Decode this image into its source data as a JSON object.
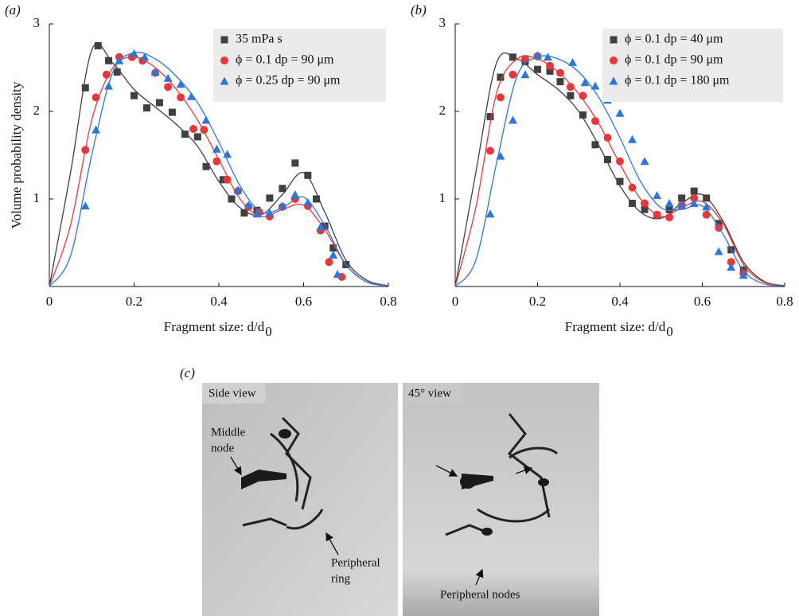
{
  "chart_data": [
    {
      "type": "scatter",
      "panel_label": "(a)",
      "ylabel": "Volume probability density",
      "xlabel": "Fragment size: d/d",
      "xlabel_sub": "0",
      "xlim": [
        0,
        0.8
      ],
      "xticks": [
        0,
        0.2,
        0.4,
        0.6,
        0.8
      ],
      "ylim": [
        0,
        3
      ],
      "yticks": [
        1,
        2,
        3
      ],
      "fit_x": [
        0,
        0.05,
        0.1,
        0.15,
        0.2,
        0.25,
        0.3,
        0.35,
        0.4,
        0.45,
        0.5,
        0.55,
        0.6,
        0.65,
        0.7,
        0.75,
        0.8
      ],
      "series": [
        {
          "name": "35 mPa s",
          "color": "#404040",
          "marker": "square",
          "x": [
            0.085,
            0.115,
            0.14,
            0.16,
            0.2,
            0.23,
            0.26,
            0.29,
            0.32,
            0.35,
            0.37,
            0.41,
            0.43,
            0.46,
            0.49,
            0.52,
            0.55,
            0.58,
            0.61,
            0.63,
            0.65,
            0.67,
            0.7
          ],
          "values": [
            2.27,
            2.75,
            2.58,
            2.45,
            2.18,
            2.04,
            2.1,
            1.99,
            1.74,
            1.71,
            1.37,
            1.22,
            1.0,
            0.84,
            0.87,
            1.01,
            1.12,
            1.41,
            1.27,
            1.0,
            0.69,
            0.44,
            0.25
          ],
          "fit": [
            0,
            1.3,
            2.7,
            2.55,
            2.25,
            2.05,
            1.85,
            1.6,
            1.2,
            0.9,
            0.82,
            1.05,
            1.3,
            0.85,
            0.3,
            0.07,
            0.01
          ]
        },
        {
          "name": "ϕ = 0.1 dp = 90 μm",
          "color": "#e8373a",
          "marker": "circle",
          "x": [
            0.085,
            0.11,
            0.135,
            0.165,
            0.195,
            0.22,
            0.25,
            0.28,
            0.31,
            0.34,
            0.365,
            0.395,
            0.42,
            0.445,
            0.47,
            0.495,
            0.52,
            0.55,
            0.58,
            0.61,
            0.64,
            0.66,
            0.69
          ],
          "values": [
            1.56,
            2.16,
            2.42,
            2.62,
            2.62,
            2.58,
            2.44,
            2.28,
            2.16,
            1.8,
            1.79,
            1.43,
            1.22,
            1.09,
            0.91,
            0.85,
            0.8,
            0.91,
            1.0,
            0.92,
            0.64,
            0.28,
            0.11
          ],
          "fit": [
            0,
            0.7,
            1.9,
            2.5,
            2.62,
            2.5,
            2.25,
            1.9,
            1.45,
            1.0,
            0.8,
            0.88,
            0.93,
            0.65,
            0.25,
            0.05,
            0.01
          ]
        },
        {
          "name": "ϕ = 0.25 dp = 90 μm",
          "color": "#2f77d6",
          "marker": "triangle",
          "x": [
            0.085,
            0.11,
            0.14,
            0.165,
            0.2,
            0.225,
            0.25,
            0.28,
            0.31,
            0.335,
            0.37,
            0.395,
            0.42,
            0.445,
            0.47,
            0.49,
            0.52,
            0.55,
            0.58,
            0.61,
            0.64,
            0.67,
            0.68
          ],
          "values": [
            0.92,
            1.79,
            2.29,
            2.58,
            2.66,
            2.62,
            2.45,
            2.38,
            2.31,
            2.17,
            1.9,
            1.57,
            1.51,
            1.1,
            0.93,
            0.83,
            0.84,
            0.92,
            1.05,
            0.96,
            0.68,
            0.36,
            0.14
          ],
          "fit": [
            0,
            0.35,
            1.5,
            2.45,
            2.67,
            2.6,
            2.4,
            2.1,
            1.65,
            1.15,
            0.85,
            0.9,
            1.02,
            0.7,
            0.25,
            0.05,
            0.01
          ]
        }
      ]
    },
    {
      "type": "scatter",
      "panel_label": "(b)",
      "xlabel": "Fragment size: d/d",
      "xlabel_sub": "0",
      "xlim": [
        0,
        0.8
      ],
      "xticks": [
        0,
        0.2,
        0.4,
        0.6,
        0.8
      ],
      "ylim": [
        0,
        3
      ],
      "yticks": [
        1,
        2,
        3
      ],
      "fit_x": [
        0,
        0.05,
        0.1,
        0.15,
        0.2,
        0.25,
        0.3,
        0.35,
        0.4,
        0.45,
        0.5,
        0.55,
        0.6,
        0.65,
        0.7,
        0.75,
        0.8
      ],
      "series": [
        {
          "name": "ϕ = 0.1 dp = 40 μm",
          "color": "#404040",
          "marker": "square",
          "x": [
            0.085,
            0.11,
            0.14,
            0.17,
            0.2,
            0.23,
            0.255,
            0.28,
            0.31,
            0.34,
            0.37,
            0.4,
            0.43,
            0.46,
            0.49,
            0.52,
            0.55,
            0.58,
            0.61,
            0.64,
            0.67,
            0.7
          ],
          "values": [
            1.94,
            2.39,
            2.62,
            2.57,
            2.48,
            2.46,
            2.34,
            2.18,
            1.96,
            1.62,
            1.45,
            1.2,
            0.95,
            0.88,
            0.81,
            0.88,
            1.01,
            1.09,
            1.01,
            0.72,
            0.42,
            0.19
          ],
          "fit": [
            0,
            1.3,
            2.55,
            2.6,
            2.42,
            2.25,
            2.0,
            1.6,
            1.15,
            0.85,
            0.78,
            0.95,
            1.05,
            0.75,
            0.28,
            0.06,
            0.01
          ]
        },
        {
          "name": "ϕ = 0.1 dp = 90 μm",
          "color": "#e8373a",
          "marker": "circle",
          "x": [
            0.085,
            0.11,
            0.14,
            0.17,
            0.2,
            0.23,
            0.255,
            0.28,
            0.31,
            0.34,
            0.37,
            0.4,
            0.43,
            0.46,
            0.49,
            0.52,
            0.55,
            0.58,
            0.61,
            0.64,
            0.67,
            0.7
          ],
          "values": [
            1.55,
            2.16,
            2.42,
            2.6,
            2.63,
            2.52,
            2.44,
            2.28,
            2.18,
            1.89,
            1.7,
            1.43,
            1.13,
            0.95,
            0.82,
            0.79,
            0.93,
            1.01,
            0.82,
            0.67,
            0.28,
            0.15
          ],
          "fit": [
            0,
            0.9,
            2.2,
            2.6,
            2.6,
            2.45,
            2.2,
            1.85,
            1.4,
            1.0,
            0.8,
            0.9,
            0.97,
            0.72,
            0.25,
            0.05,
            0.01
          ]
        },
        {
          "name": "ϕ = 0.1 dp = 180 μm",
          "color": "#2f77d6",
          "marker": "triangle",
          "x": [
            0.085,
            0.11,
            0.14,
            0.17,
            0.2,
            0.225,
            0.285,
            0.315,
            0.34,
            0.37,
            0.4,
            0.43,
            0.46,
            0.49,
            0.52,
            0.55,
            0.58,
            0.61,
            0.64,
            0.67,
            0.7
          ],
          "values": [
            0.83,
            1.49,
            1.9,
            2.42,
            2.64,
            2.62,
            2.56,
            2.33,
            2.29,
            2.13,
            1.98,
            1.68,
            1.43,
            1.04,
            0.95,
            0.93,
            0.95,
            0.91,
            0.4,
            0.22,
            0.13
          ],
          "fit": [
            0,
            0.3,
            1.4,
            2.4,
            2.62,
            2.6,
            2.45,
            2.15,
            1.7,
            1.2,
            0.9,
            0.88,
            0.92,
            0.6,
            0.18,
            0.03,
            0.01
          ]
        }
      ]
    }
  ],
  "photos": {
    "panel_label": "(c)",
    "images": [
      {
        "title": "Side view",
        "annotations": [
          [
            "Middle",
            "node"
          ],
          [
            "Peripheral",
            "ring"
          ]
        ]
      },
      {
        "title": "45° view",
        "annotations": [
          [
            "Peripheral nodes"
          ]
        ]
      }
    ]
  }
}
